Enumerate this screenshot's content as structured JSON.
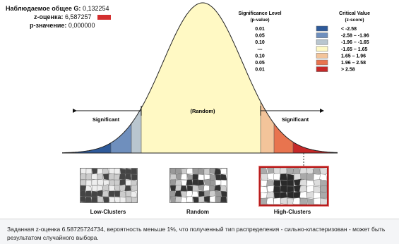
{
  "stats": {
    "index_label": "Наблюдаемое общее G:",
    "index_value": "0,132254",
    "z_label": "z-оценка:",
    "z_value": "6,587257",
    "p_label": "p-значение:",
    "p_value": "0,000000"
  },
  "legend": {
    "sig_title": "Significance Level",
    "sig_sub": "(p-value)",
    "crit_title": "Critical Value",
    "crit_sub": "(z-score)",
    "rows": [
      {
        "p": "0.01",
        "z": "< -2.58",
        "color": "#2e5a9a"
      },
      {
        "p": "0.05",
        "z": "-2.58 – -1.96",
        "color": "#6f8fbd"
      },
      {
        "p": "0.10",
        "z": "-1.96 – -1.65",
        "color": "#b9c6cf"
      },
      {
        "p": "---",
        "z": "-1.65 – 1.65",
        "color": "#fff9c4"
      },
      {
        "p": "0.10",
        "z": "1.65 – 1.96",
        "color": "#f3c49a"
      },
      {
        "p": "0.05",
        "z": "1.96 – 2.58",
        "color": "#e8744f"
      },
      {
        "p": "0.01",
        "z": "> 2.58",
        "color": "#c62828"
      }
    ]
  },
  "curve": {
    "left_label": "Significant",
    "center_label": "(Random)",
    "right_label": "Significant"
  },
  "maps": {
    "low": "Low-Clusters",
    "random": "Random",
    "high": "High-Clusters"
  },
  "footer": {
    "text": "Заданная z-оценка 6.58725724734, вероятность меньше 1%, что полученный тип распределения - сильно-кластеризован - может быть результатом случайного выбора."
  }
}
